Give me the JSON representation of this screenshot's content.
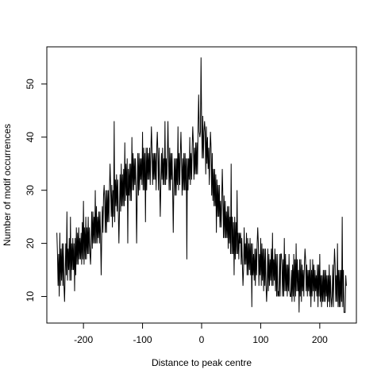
{
  "chart_data": {
    "type": "line",
    "title": "",
    "xlabel": "Distance to peak centre",
    "ylabel": "Number of motif occurrences",
    "xlim": [
      -262,
      262
    ],
    "ylim": [
      5,
      57
    ],
    "grid": false,
    "legend": "none",
    "x_ticks": [
      -200,
      -100,
      0,
      100,
      200
    ],
    "y_ticks": [
      10,
      20,
      30,
      40,
      50
    ],
    "x_tick_labels": [
      "-200",
      "-100",
      "0",
      "100",
      "200"
    ],
    "y_tick_labels": [
      "10",
      "20",
      "30",
      "40",
      "50"
    ],
    "line_color": "#000000",
    "anchors": [
      [
        -245,
        14
      ],
      [
        -235,
        16
      ],
      [
        -225,
        17
      ],
      [
        -215,
        18
      ],
      [
        -200,
        20
      ],
      [
        -185,
        22
      ],
      [
        -170,
        24
      ],
      [
        -160,
        26
      ],
      [
        -150,
        28
      ],
      [
        -140,
        30
      ],
      [
        -130,
        31
      ],
      [
        -115,
        33
      ],
      [
        -100,
        34
      ],
      [
        -90,
        34
      ],
      [
        -80,
        34
      ],
      [
        -70,
        34
      ],
      [
        -60,
        34
      ],
      [
        -50,
        34
      ],
      [
        -40,
        33
      ],
      [
        -30,
        33
      ],
      [
        -20,
        34
      ],
      [
        -10,
        36
      ],
      [
        0,
        39
      ],
      [
        10,
        37
      ],
      [
        20,
        31
      ],
      [
        30,
        27
      ],
      [
        40,
        24
      ],
      [
        50,
        22
      ],
      [
        60,
        20
      ],
      [
        70,
        19
      ],
      [
        80,
        17
      ],
      [
        90,
        16
      ],
      [
        100,
        16
      ],
      [
        110,
        15
      ],
      [
        120,
        15
      ],
      [
        130,
        14
      ],
      [
        140,
        14
      ],
      [
        160,
        13
      ],
      [
        180,
        13
      ],
      [
        200,
        12
      ],
      [
        220,
        12
      ],
      [
        245,
        11
      ]
    ],
    "noise_amplitude": 4.5,
    "spikes": [
      [
        -245,
        22
      ],
      [
        -240,
        22
      ],
      [
        -232,
        9
      ],
      [
        -228,
        26
      ],
      [
        -222,
        25
      ],
      [
        -215,
        11
      ],
      [
        -210,
        22
      ],
      [
        -200,
        28
      ],
      [
        -188,
        16
      ],
      [
        -180,
        30
      ],
      [
        -170,
        14
      ],
      [
        -165,
        31
      ],
      [
        -155,
        35
      ],
      [
        -148,
        43
      ],
      [
        -140,
        20
      ],
      [
        -130,
        39
      ],
      [
        -125,
        20
      ],
      [
        -118,
        40
      ],
      [
        -110,
        20
      ],
      [
        -100,
        41
      ],
      [
        -95,
        24
      ],
      [
        -85,
        42
      ],
      [
        -75,
        41
      ],
      [
        -70,
        25
      ],
      [
        -62,
        43
      ],
      [
        -57,
        43
      ],
      [
        -48,
        22
      ],
      [
        -40,
        42
      ],
      [
        -35,
        41
      ],
      [
        -25,
        17
      ],
      [
        -20,
        40
      ],
      [
        -15,
        42
      ],
      [
        -5,
        48
      ],
      [
        -3,
        40
      ],
      [
        -1,
        55
      ],
      [
        2,
        44
      ],
      [
        5,
        43
      ],
      [
        15,
        41
      ],
      [
        25,
        22
      ],
      [
        35,
        34
      ],
      [
        45,
        19
      ],
      [
        50,
        35
      ],
      [
        55,
        14
      ],
      [
        60,
        30
      ],
      [
        65,
        20
      ],
      [
        70,
        12
      ],
      [
        80,
        20
      ],
      [
        85,
        8
      ],
      [
        95,
        23
      ],
      [
        100,
        21
      ],
      [
        110,
        9
      ],
      [
        120,
        22
      ],
      [
        130,
        11
      ],
      [
        135,
        18
      ],
      [
        140,
        21
      ],
      [
        150,
        10
      ],
      [
        160,
        20
      ],
      [
        165,
        7
      ],
      [
        175,
        19
      ],
      [
        185,
        8
      ],
      [
        200,
        18
      ],
      [
        210,
        15
      ],
      [
        220,
        8
      ],
      [
        225,
        19
      ],
      [
        230,
        20
      ],
      [
        238,
        25
      ],
      [
        242,
        7
      ],
      [
        245,
        12
      ]
    ]
  }
}
